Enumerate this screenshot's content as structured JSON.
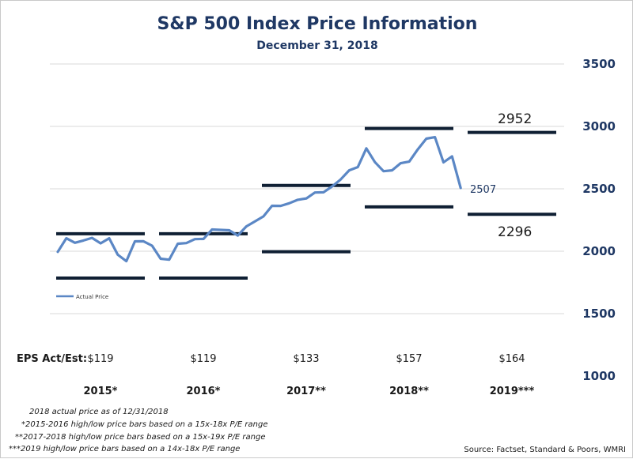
{
  "chart_data": {
    "type": "line",
    "title": "S&P 500 Index Price Information",
    "subtitle": "December 31, 2018",
    "ylim": [
      1000,
      3500
    ],
    "yticks": [
      "1000",
      "1500",
      "2000",
      "2500",
      "3000",
      "3500"
    ],
    "grid": true,
    "legend": {
      "entries": [
        "Actual Price"
      ],
      "placement": "left"
    },
    "categories": [
      "2015*",
      "2016*",
      "2017**",
      "2018**",
      "2019***"
    ],
    "eps_label": "EPS Act/Est:",
    "eps_values": [
      "$119",
      "$119",
      "$133",
      "$157",
      "$164"
    ],
    "series": [
      {
        "name": "Actual Price",
        "color": "#5b87c5",
        "x": [
          0,
          0.083,
          0.167,
          0.25,
          0.333,
          0.417,
          0.5,
          0.583,
          0.667,
          0.75,
          0.833,
          0.917,
          1.0,
          1.083,
          1.167,
          1.25,
          1.333,
          1.417,
          1.5,
          1.583,
          1.667,
          1.75,
          1.833,
          1.917,
          2.0,
          2.083,
          2.167,
          2.25,
          2.333,
          2.417,
          2.5,
          2.583,
          2.667,
          2.75,
          2.833,
          2.917,
          3.0,
          3.083,
          3.167,
          3.25,
          3.333,
          3.417,
          3.5,
          3.583,
          3.667,
          3.75,
          3.833,
          3.917
        ],
        "values": [
          1995,
          2104,
          2068,
          2086,
          2107,
          2063,
          2104,
          1972,
          1920,
          2079,
          2080,
          2044,
          1940,
          1932,
          2060,
          2065,
          2097,
          2099,
          2174,
          2171,
          2168,
          2126,
          2199,
          2239,
          2279,
          2364,
          2363,
          2384,
          2412,
          2423,
          2470,
          2472,
          2519,
          2575,
          2648,
          2674,
          2824,
          2714,
          2641,
          2648,
          2705,
          2718,
          2816,
          2902,
          2914,
          2712,
          2760,
          2507
        ]
      }
    ],
    "range_bars": [
      {
        "year": "2015*",
        "high": 2140,
        "low": 1785
      },
      {
        "year": "2016*",
        "high": 2140,
        "low": 1785
      },
      {
        "year": "2017**",
        "high": 2527,
        "low": 1996
      },
      {
        "year": "2018**",
        "high": 2983,
        "low": 2355
      },
      {
        "year": "2019***",
        "high": 2952,
        "low": 2296
      }
    ],
    "annotations": {
      "last_price": "2507",
      "forecast_high": "2952",
      "forecast_low": "2296"
    },
    "notes": [
      "2018 actual price as of 12/31/2018",
      "*2015-2016 high/low price bars based on a 15x-18x P/E range",
      "**2017-2018 high/low price bars based on a 15x-19x P/E range",
      "***2019 high/low price bars based on a 14x-18x P/E range"
    ],
    "source": "Source:  Factset, Standard & Poors, WMRI"
  }
}
